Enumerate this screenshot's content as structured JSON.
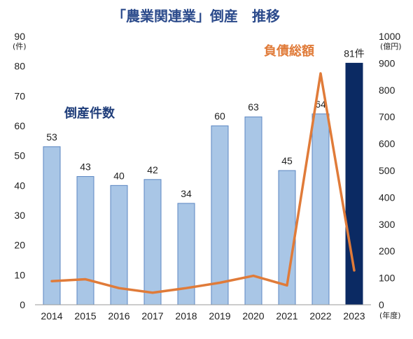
{
  "chart_data": {
    "type": "bar",
    "title": "「農業関連業」倒産　推移",
    "categories": [
      "2014",
      "2015",
      "2016",
      "2017",
      "2018",
      "2019",
      "2020",
      "2021",
      "2022",
      "2023"
    ],
    "series": [
      {
        "name": "倒産件数",
        "chart": "bar",
        "axis": "left",
        "values": [
          53,
          43,
          40,
          42,
          34,
          60,
          63,
          45,
          64,
          81
        ],
        "data_labels": [
          "53",
          "43",
          "40",
          "42",
          "34",
          "60",
          "63",
          "45",
          "64",
          "81件"
        ],
        "color": "#a9c6e6",
        "highlight_color": "#0b2a63",
        "label_color": "#1f3d7a"
      },
      {
        "name": "負債総額",
        "chart": "line",
        "axis": "right",
        "values": [
          88,
          95,
          62,
          45,
          62,
          82,
          108,
          72,
          862,
          128
        ],
        "color": "#e07b39",
        "label_color": "#e07b39"
      }
    ],
    "y_left": {
      "unit": "(件)",
      "ylim": [
        0,
        90
      ],
      "ticks": [
        "0",
        "10",
        "20",
        "30",
        "40",
        "50",
        "60",
        "70",
        "80",
        "90"
      ]
    },
    "y_right": {
      "unit": "(億円)",
      "ylim": [
        0,
        1000
      ],
      "ticks": [
        "0",
        "100",
        "200",
        "300",
        "400",
        "500",
        "600",
        "700",
        "800",
        "900",
        "1000"
      ]
    },
    "x_unit": "(年度)",
    "grid": false,
    "legend": "inline labels"
  }
}
